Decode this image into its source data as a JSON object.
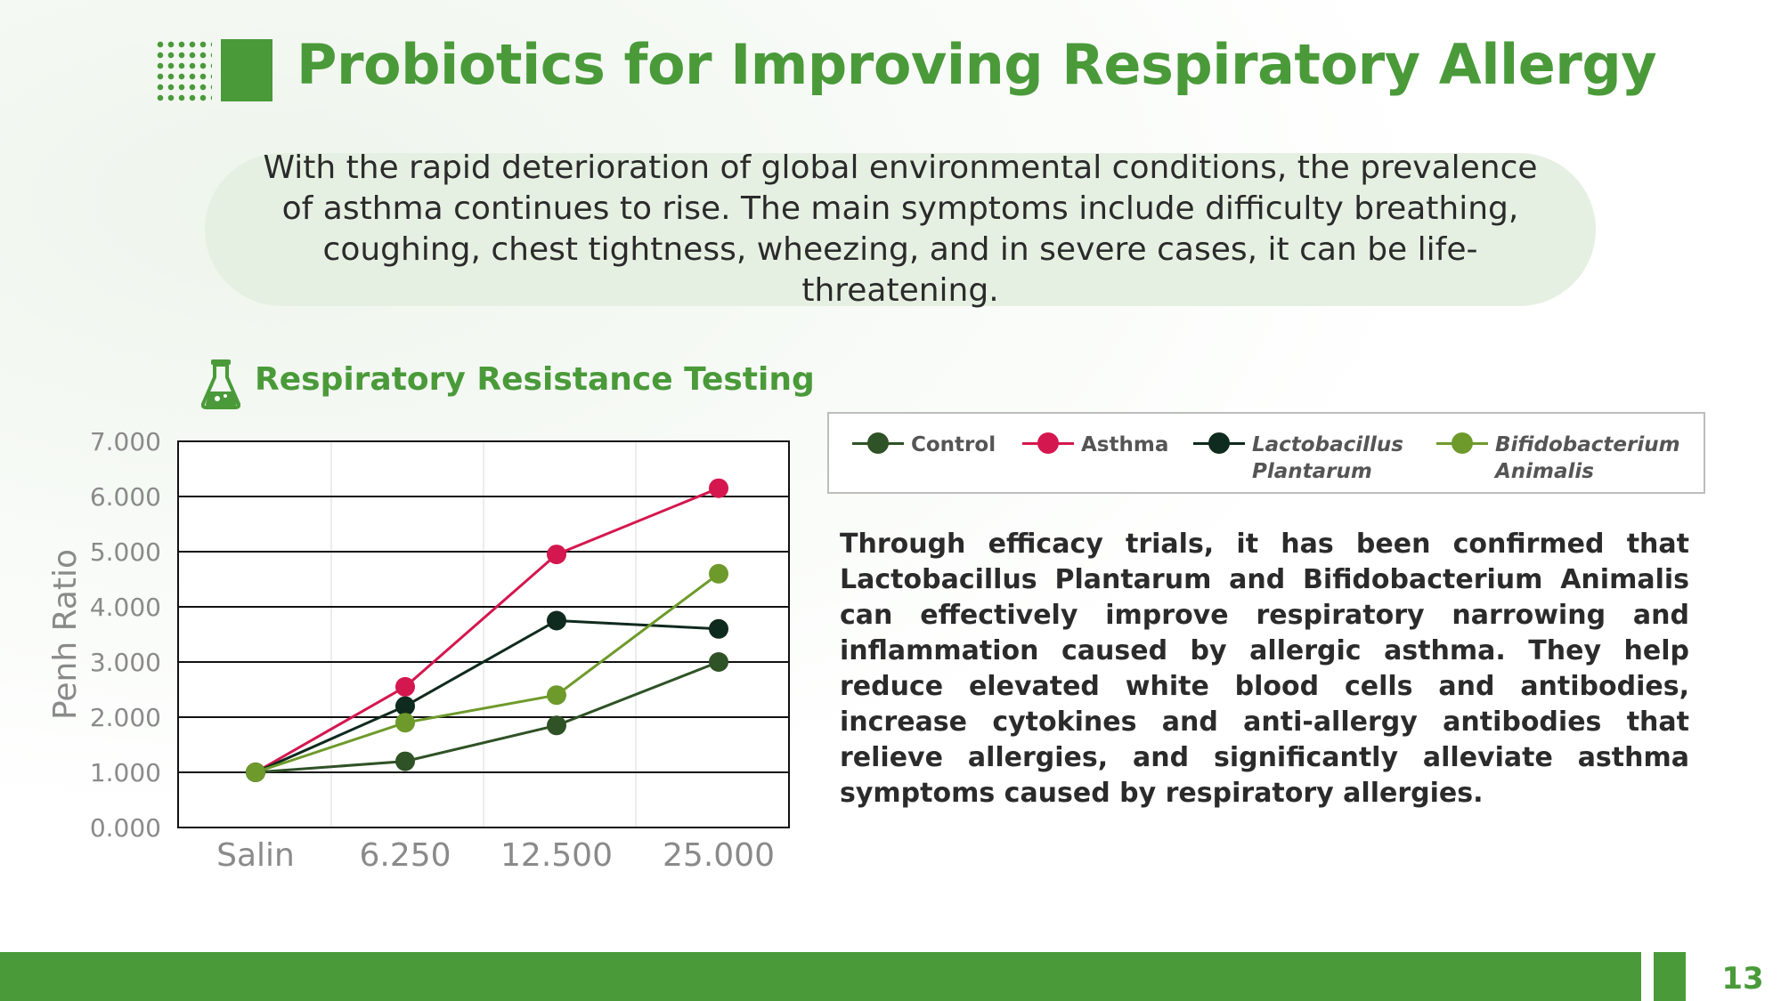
{
  "header": {
    "title": "Probiotics for Improving Respiratory Allergy"
  },
  "intro": {
    "text": "With the rapid deterioration of global environmental conditions, the prevalence of asthma continues to rise. The main symptoms include difficulty breathing, coughing, chest tightness, wheezing, and in severe cases, it can be life-threatening."
  },
  "section": {
    "subtitle": "Respiratory Resistance Testing",
    "icon": "flask-icon"
  },
  "legend": {
    "items": [
      {
        "line1": "Control",
        "line2": "",
        "color": "#2f5226"
      },
      {
        "line1": "Asthma",
        "line2": "",
        "color": "#d4174e"
      },
      {
        "line1": "Lactobacillus",
        "line2": "Plantarum",
        "color": "#0f2a1e"
      },
      {
        "line1": "Bifidobacterium",
        "line2": "Animalis",
        "color": "#6e9a2b"
      }
    ]
  },
  "body": {
    "text": "Through efficacy trials, it has been confirmed that Lactobacillus Plantarum and Bifidobacterium Animalis can effectively improve respiratory narrowing and inflammation caused by allergic asthma. They help reduce elevated white blood cells and antibodies, increase cytokines and anti-allergy antibodies that relieve allergies, and significantly alleviate asthma symptoms caused by respiratory allergies."
  },
  "footer": {
    "page_number": "13"
  },
  "colors": {
    "accent": "#4a9a3a",
    "pill": "#e6f0e2"
  },
  "chart_data": {
    "type": "line",
    "title": "Respiratory Resistance Testing",
    "xlabel": "",
    "ylabel": "Penh Ratio",
    "categories": [
      "Salin",
      "6.250",
      "12.500",
      "25.000"
    ],
    "y_ticks": [
      "0.000",
      "1.000",
      "2.000",
      "3.000",
      "4.000",
      "5.000",
      "6.000",
      "7.000"
    ],
    "ylim": [
      0,
      7
    ],
    "grid": true,
    "legend_position": "top-right",
    "series": [
      {
        "name": "Control",
        "color": "#2f5226",
        "values": [
          1.0,
          1.2,
          1.85,
          3.0
        ]
      },
      {
        "name": "Asthma",
        "color": "#d4174e",
        "values": [
          1.0,
          2.55,
          4.95,
          6.15
        ]
      },
      {
        "name": "Lactobacillus Plantarum",
        "color": "#0f2a1e",
        "values": [
          1.0,
          2.2,
          3.75,
          3.6
        ]
      },
      {
        "name": "Bifidobacterium Animalis",
        "color": "#6e9a2b",
        "values": [
          1.0,
          1.9,
          2.4,
          4.6
        ]
      }
    ]
  }
}
